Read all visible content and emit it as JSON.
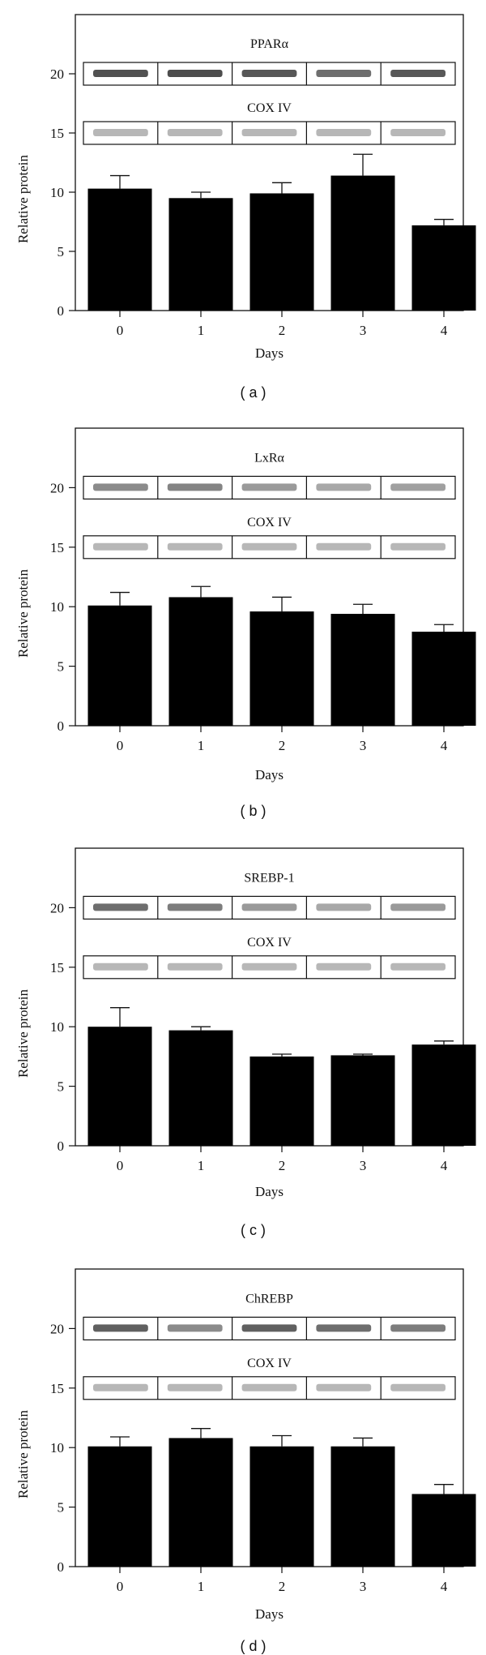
{
  "chart_data": [
    {
      "type": "bar",
      "panel_label": "( a )",
      "xlabel": "Days",
      "ylabel": "Relative protein",
      "categories": [
        "0",
        "1",
        "2",
        "3",
        "4"
      ],
      "values": [
        10.3,
        9.5,
        9.9,
        11.4,
        7.2
      ],
      "errors": [
        1.1,
        0.5,
        0.9,
        1.8,
        0.5
      ],
      "ylim": [
        0,
        25
      ],
      "yticks": [
        "0",
        "5",
        "10",
        "15",
        "20"
      ],
      "blot_top_label": "PPARα",
      "blot_bottom_label": "COX IV",
      "bar_color": "#000000"
    },
    {
      "type": "bar",
      "panel_label": "( b )",
      "xlabel": "Days",
      "ylabel": "Relative protein",
      "categories": [
        "0",
        "1",
        "2",
        "3",
        "4"
      ],
      "values": [
        10.1,
        10.8,
        9.6,
        9.4,
        7.9
      ],
      "errors": [
        1.1,
        0.9,
        1.2,
        0.8,
        0.6
      ],
      "ylim": [
        0,
        25
      ],
      "yticks": [
        "0",
        "5",
        "10",
        "15",
        "20"
      ],
      "blot_top_label": "LxRα",
      "blot_bottom_label": "COX IV",
      "bar_color": "#000000"
    },
    {
      "type": "bar",
      "panel_label": "( c )",
      "xlabel": "Days",
      "ylabel": "Relative protein",
      "categories": [
        "0",
        "1",
        "2",
        "3",
        "4"
      ],
      "values": [
        10.0,
        9.7,
        7.5,
        7.6,
        8.5
      ],
      "errors": [
        1.6,
        0.3,
        0.2,
        0.1,
        0.3
      ],
      "ylim": [
        0,
        25
      ],
      "yticks": [
        "0",
        "5",
        "10",
        "15",
        "20"
      ],
      "blot_top_label": "SREBP-1",
      "blot_bottom_label": "COX IV",
      "bar_color": "#000000"
    },
    {
      "type": "bar",
      "panel_label": "( d )",
      "xlabel": "Days",
      "ylabel": "Relative protein",
      "categories": [
        "0",
        "1",
        "2",
        "3",
        "4"
      ],
      "values": [
        10.1,
        10.8,
        10.1,
        10.1,
        6.1
      ],
      "errors": [
        0.8,
        0.8,
        0.9,
        0.7,
        0.8
      ],
      "ylim": [
        0,
        25
      ],
      "yticks": [
        "0",
        "5",
        "10",
        "15",
        "20"
      ],
      "blot_top_label": "ChREBP",
      "blot_bottom_label": "COX IV",
      "bar_color": "#000000"
    }
  ]
}
